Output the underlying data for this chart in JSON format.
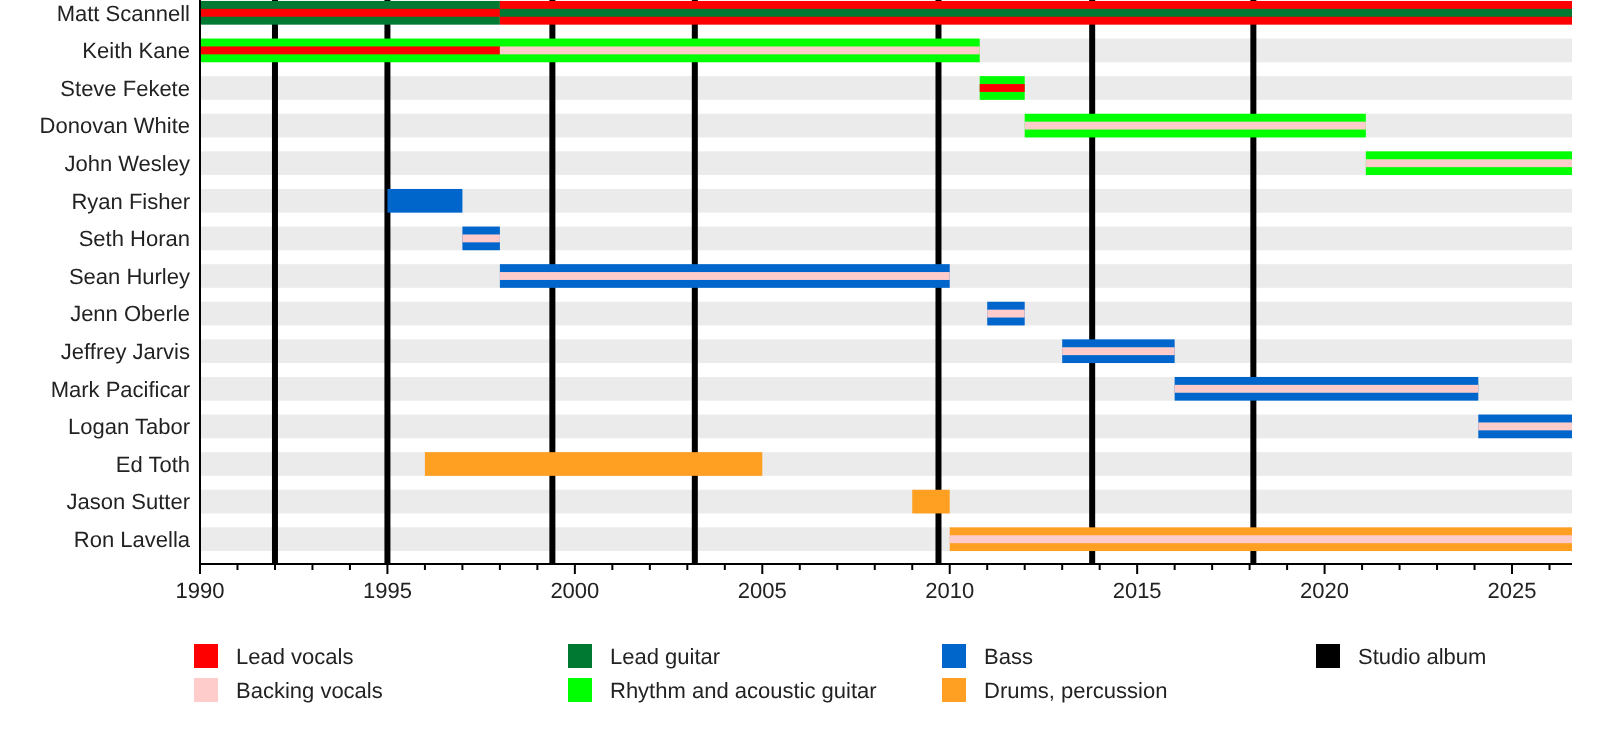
{
  "chart_data": {
    "type": "bar",
    "orientation": "horizontal",
    "categories": [
      "Matt Scannell",
      "Keith Kane",
      "Steve Fekete",
      "Donovan White",
      "John Wesley",
      "Ryan Fisher",
      "Seth Horan",
      "Sean Hurley",
      "Jenn Oberle",
      "Jeffrey Jarvis",
      "Mark Pacificar",
      "Logan Tabor",
      "Ed Toth",
      "Jason Sutter",
      "Ron Lavella"
    ],
    "series": [
      {
        "name": "Lead vocals",
        "color": "#ff0000",
        "base": [
          1990,
          1990,
          2010.8,
          null,
          null,
          null,
          null,
          null,
          null,
          null,
          null,
          null,
          null,
          null,
          null
        ],
        "values": [
          8,
          8,
          1.2,
          null,
          null,
          null,
          null,
          null,
          null,
          null,
          null,
          null,
          null,
          null,
          null
        ]
      },
      {
        "name": "Backing vocals",
        "color": "#ffcccc",
        "base": [
          null,
          1998,
          null,
          2012,
          2021.1,
          null,
          1997,
          1998,
          2011,
          2013,
          2016,
          2024.1,
          null,
          null,
          2010
        ],
        "values": [
          null,
          12.8,
          null,
          9.1,
          5.5,
          null,
          1,
          12,
          1,
          3,
          8.1,
          2.5,
          null,
          null,
          16.6
        ]
      },
      {
        "name": "Lead guitar",
        "color": "#007a33",
        "base": [
          1998,
          null,
          null,
          null,
          null,
          null,
          null,
          null,
          null,
          null,
          null,
          null,
          null,
          null,
          null
        ],
        "values": [
          28.6,
          null,
          null,
          null,
          null,
          null,
          null,
          null,
          null,
          null,
          null,
          null,
          null,
          null,
          null
        ]
      },
      {
        "color": "#007a33",
        "base": [
          1990,
          null,
          null,
          null,
          null,
          null,
          null,
          null,
          null,
          null,
          null,
          null,
          null,
          null,
          null
        ],
        "values": [
          8,
          null,
          null,
          null,
          null,
          null,
          null,
          null,
          null,
          null,
          null,
          null,
          null,
          null,
          null
        ]
      },
      {
        "color": "#ff0000",
        "base": [
          1998,
          null,
          null,
          null,
          null,
          null,
          null,
          null,
          null,
          null,
          null,
          null,
          null,
          null,
          null
        ],
        "values": [
          28.6,
          null,
          null,
          null,
          null,
          null,
          null,
          null,
          null,
          null,
          null,
          null,
          null,
          null,
          null
        ]
      },
      {
        "name": "Rhythm and acoustic guitar",
        "color": "#00ff00",
        "base": [
          null,
          1990,
          2010.8,
          2012,
          2021.1,
          null,
          null,
          null,
          null,
          null,
          null,
          null,
          null,
          null,
          null
        ],
        "values": [
          null,
          20.8,
          1.2,
          9.1,
          5.5,
          null,
          null,
          null,
          null,
          null,
          null,
          null,
          null,
          null,
          null
        ]
      },
      {
        "name": "Bass",
        "color": "#0066cc",
        "base": [
          null,
          null,
          null,
          null,
          null,
          1995,
          1997,
          1998,
          2011,
          2013,
          2016,
          2024.1,
          null,
          null,
          null
        ],
        "values": [
          null,
          null,
          null,
          null,
          null,
          2,
          1,
          12,
          1,
          3,
          8.1,
          2.5,
          null,
          null,
          null
        ]
      },
      {
        "name": "Drums, percussion",
        "color": "#ffa023",
        "base": [
          null,
          null,
          null,
          null,
          null,
          null,
          null,
          null,
          null,
          null,
          null,
          null,
          1996,
          2009,
          2010
        ],
        "values": [
          null,
          null,
          null,
          null,
          null,
          null,
          null,
          null,
          null,
          null,
          null,
          null,
          9,
          1,
          16.6
        ]
      }
    ],
    "xlim": [
      1990,
      2026.6
    ],
    "xticks": [
      1990,
      {
        "value": 1991,
        "label": null
      },
      {
        "value": 1992,
        "label": null
      },
      {
        "value": 1993,
        "label": null
      },
      {
        "value": 1994,
        "label": null
      },
      1995,
      {
        "value": 1996,
        "label": null
      },
      {
        "value": 1997,
        "label": null
      },
      {
        "value": 1998,
        "label": null
      },
      {
        "value": 1999,
        "label": null
      },
      2000,
      {
        "value": 2001,
        "label": null
      },
      {
        "value": 2002,
        "label": null
      },
      {
        "value": 2003,
        "label": null
      },
      {
        "value": 2004,
        "label": null
      },
      2005,
      {
        "value": 2006,
        "label": null
      },
      {
        "value": 2007,
        "label": null
      },
      {
        "value": 2008,
        "label": null
      },
      {
        "value": 2009,
        "label": null
      },
      2010,
      {
        "value": 2011,
        "label": null
      },
      {
        "value": 2012,
        "label": null
      },
      {
        "value": 2013,
        "label": null
      },
      {
        "value": 2014,
        "label": null
      },
      2015,
      {
        "value": 2016,
        "label": null
      },
      {
        "value": 2017,
        "label": null
      },
      {
        "value": 2018,
        "label": null
      },
      {
        "value": 2019,
        "label": null
      },
      2020,
      {
        "value": 2021,
        "label": null
      },
      {
        "value": 2022,
        "label": null
      },
      {
        "value": 2023,
        "label": null
      },
      {
        "value": 2024,
        "label": null
      },
      2025,
      {
        "value": 2026,
        "label": null
      }
    ],
    "ref_lines": [
      {
        "axis": "x",
        "value": 1992,
        "label": "Studio album",
        "color": "#000000"
      },
      {
        "axis": "x",
        "value": 1995,
        "color": "#000000"
      },
      {
        "axis": "x",
        "value": 1999.4,
        "color": "#000000"
      },
      {
        "axis": "x",
        "value": 2003.2,
        "color": "#000000"
      },
      {
        "axis": "x",
        "value": 2009.7,
        "color": "#000000"
      },
      {
        "axis": "x",
        "value": 2013.8,
        "color": "#000000"
      },
      {
        "axis": "x",
        "value": 2018.1,
        "color": "#000000"
      }
    ],
    "legend": "bottom"
  }
}
